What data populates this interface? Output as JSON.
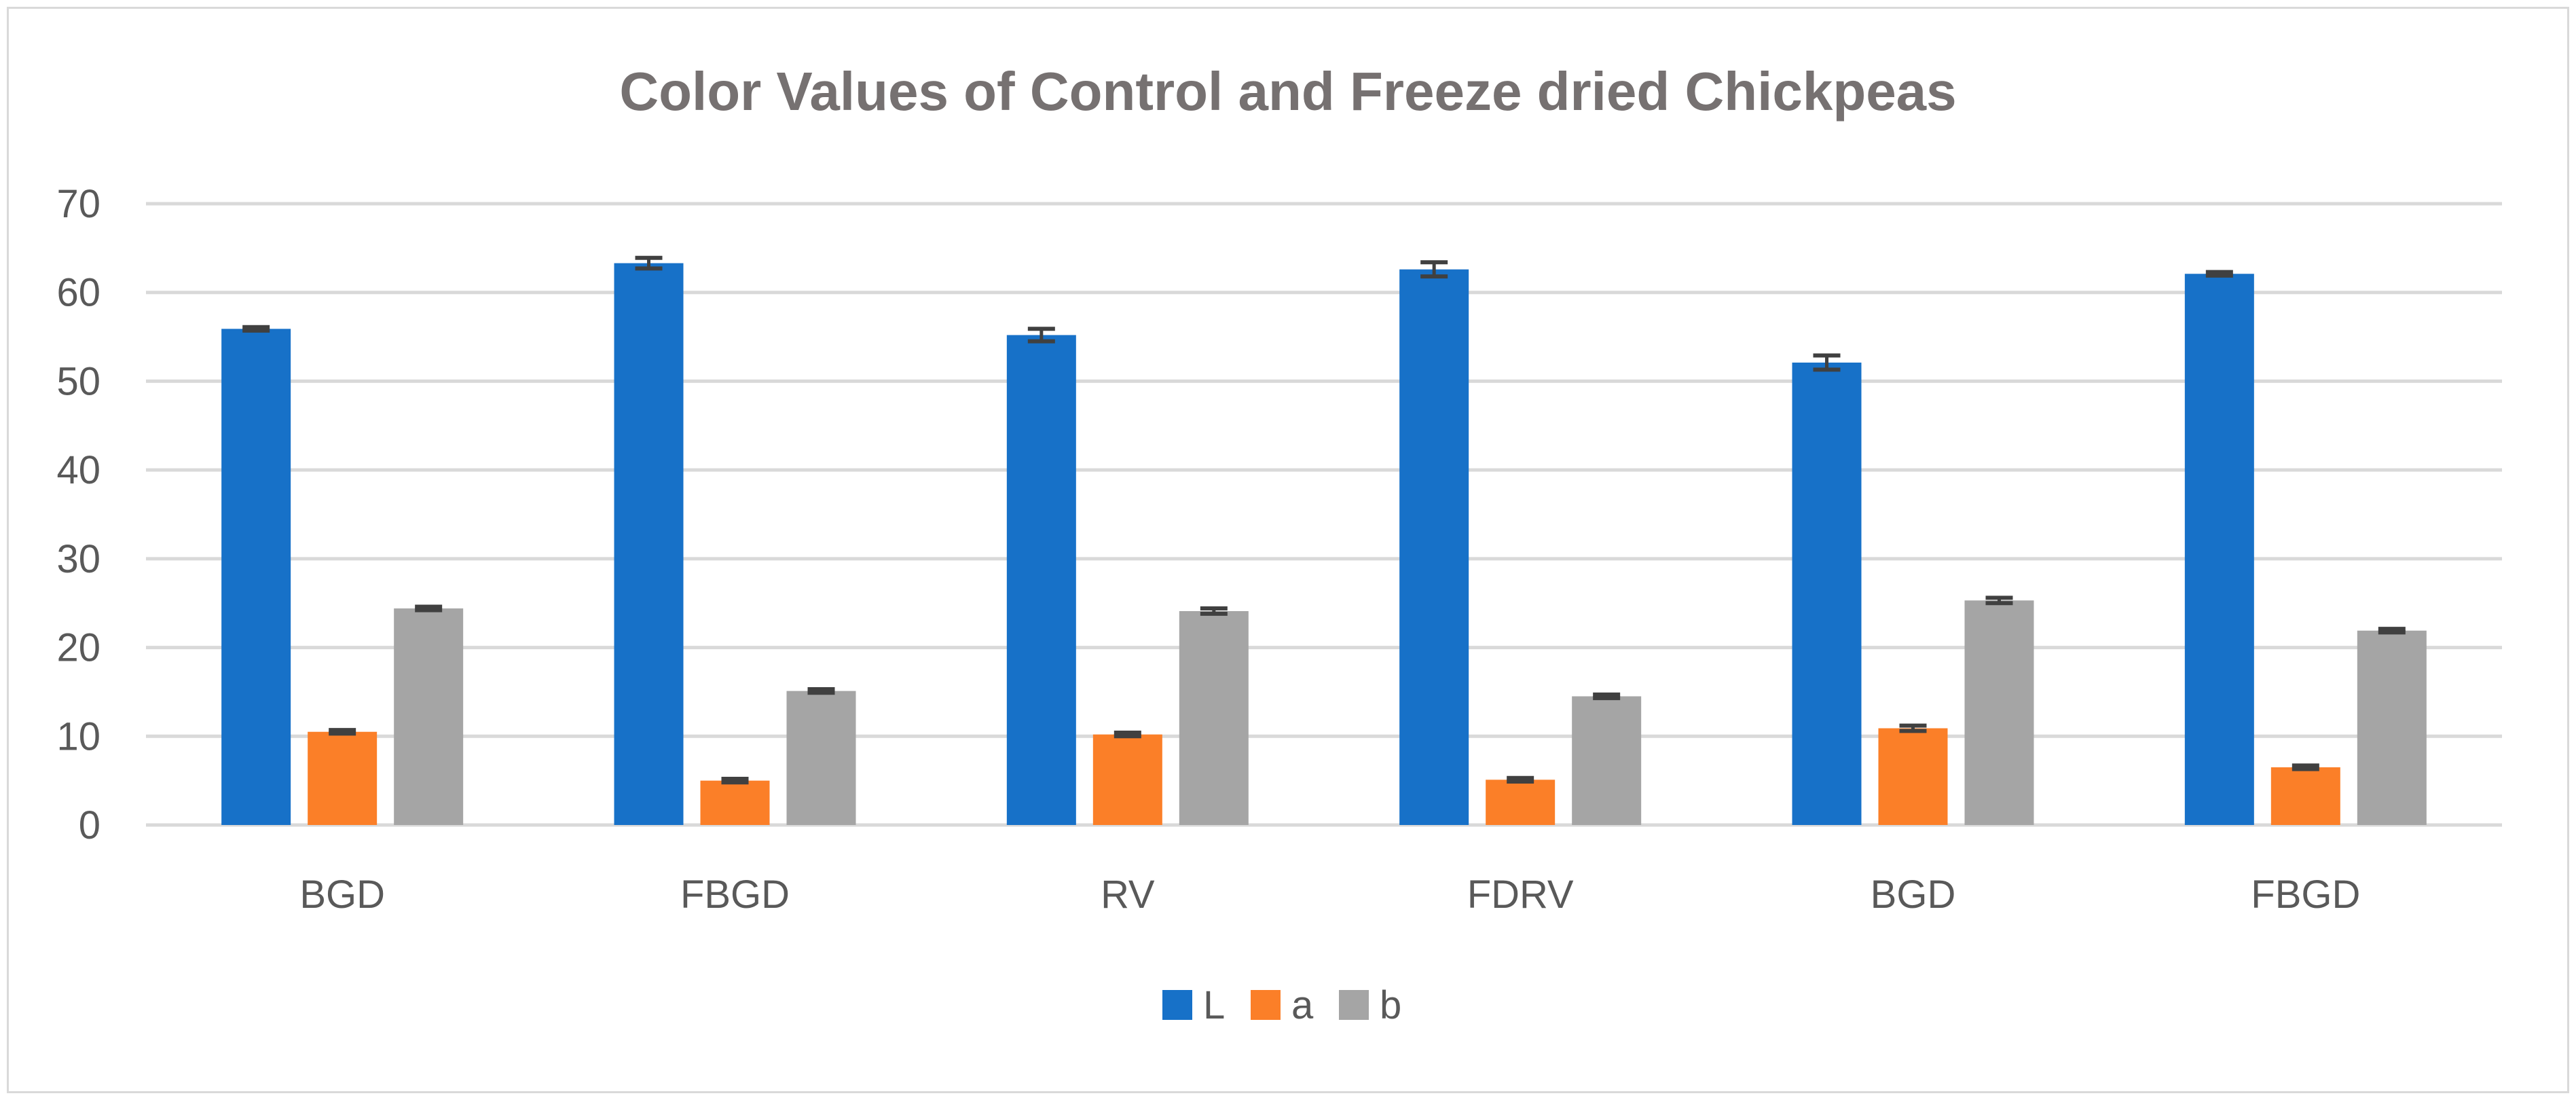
{
  "chart_data": {
    "type": "bar",
    "title": "Color  Values of Control and Freeze dried  Chickpeas",
    "xlabel": "",
    "ylabel": "",
    "ylim": [
      0,
      70
    ],
    "yticks": [
      0,
      10,
      20,
      30,
      40,
      50,
      60,
      70
    ],
    "grid": true,
    "legend_position": "bottom-center",
    "categories": [
      "BGD",
      "FBGD",
      "RV",
      "FDRV",
      "BGD",
      "FBGD"
    ],
    "series": [
      {
        "name": "L",
        "color": "#1771c8",
        "values": [
          55.9,
          63.3,
          55.2,
          62.6,
          52.1,
          62.1
        ],
        "errors": [
          0.2,
          0.6,
          0.7,
          0.8,
          0.8,
          0.2
        ]
      },
      {
        "name": "a",
        "color": "#fb7f28",
        "values": [
          10.5,
          5.0,
          10.2,
          5.1,
          10.9,
          6.5
        ],
        "errors": [
          0.2,
          0.2,
          0.2,
          0.2,
          0.3,
          0.2
        ]
      },
      {
        "name": "b",
        "color": "#a5a5a5",
        "values": [
          24.4,
          15.1,
          24.1,
          14.5,
          25.3,
          21.9
        ],
        "errors": [
          0.2,
          0.2,
          0.3,
          0.2,
          0.3,
          0.2
        ]
      }
    ],
    "colors": {
      "grid": "#d9d9d9",
      "error_bar": "#404040",
      "title": "#767171",
      "text": "#595959"
    }
  }
}
